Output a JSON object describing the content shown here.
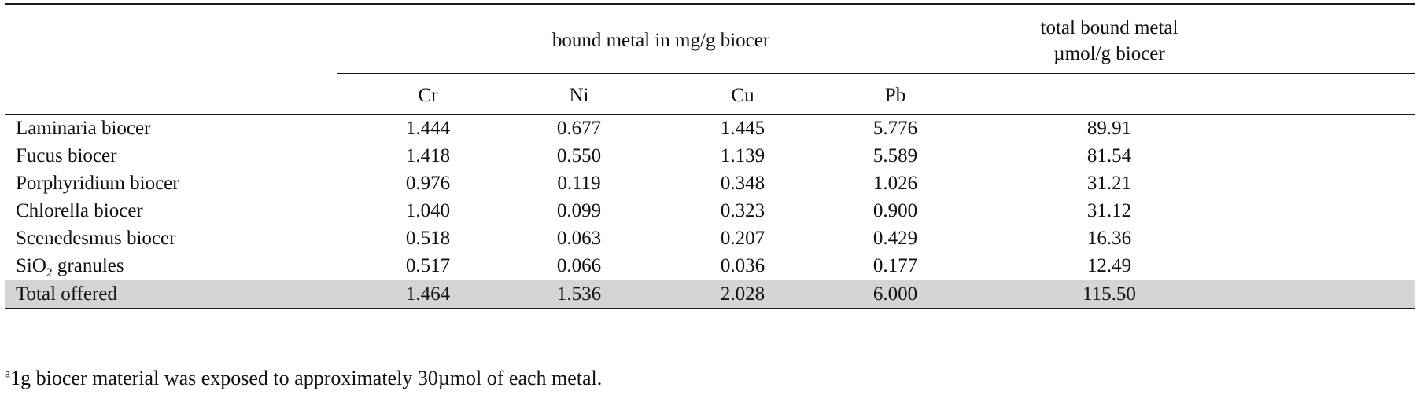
{
  "table": {
    "group_header": "bound metal in mg/g biocer",
    "total_header_line1": "total bound metal",
    "total_header_line2": "µmol/g biocer",
    "columns": [
      "Cr",
      "Ni",
      "Cu",
      "Pb"
    ],
    "rows": [
      {
        "label": "Laminaria biocer",
        "values": [
          "1.444",
          "0.677",
          "1.445",
          "5.776",
          "89.91"
        ]
      },
      {
        "label": "Fucus biocer",
        "values": [
          "1.418",
          "0.550",
          "1.139",
          "5.589",
          "81.54"
        ]
      },
      {
        "label": "Porphyridium biocer",
        "values": [
          "0.976",
          "0.119",
          "0.348",
          "1.026",
          "31.21"
        ]
      },
      {
        "label": "Chlorella biocer",
        "values": [
          "1.040",
          "0.099",
          "0.323",
          "0.900",
          "31.12"
        ]
      },
      {
        "label": "Scenedesmus biocer",
        "values": [
          "0.518",
          "0.063",
          "0.207",
          "0.429",
          "16.36"
        ]
      },
      {
        "label_main": "SiO",
        "label_sub": "2",
        "label_rest": " granules",
        "values": [
          "0.517",
          "0.066",
          "0.036",
          "0.177",
          "12.49"
        ]
      }
    ],
    "total_row": {
      "label": "Total offered",
      "values": [
        "1.464",
        "1.536",
        "2.028",
        "6.000",
        "115.50"
      ]
    }
  },
  "footnote": {
    "marker": "a",
    "text": "1g biocer material was exposed to approximately 30µmol of each metal."
  },
  "colors": {
    "total_row_shading": "#d4d4d4",
    "rules": "#1a1a1a"
  }
}
